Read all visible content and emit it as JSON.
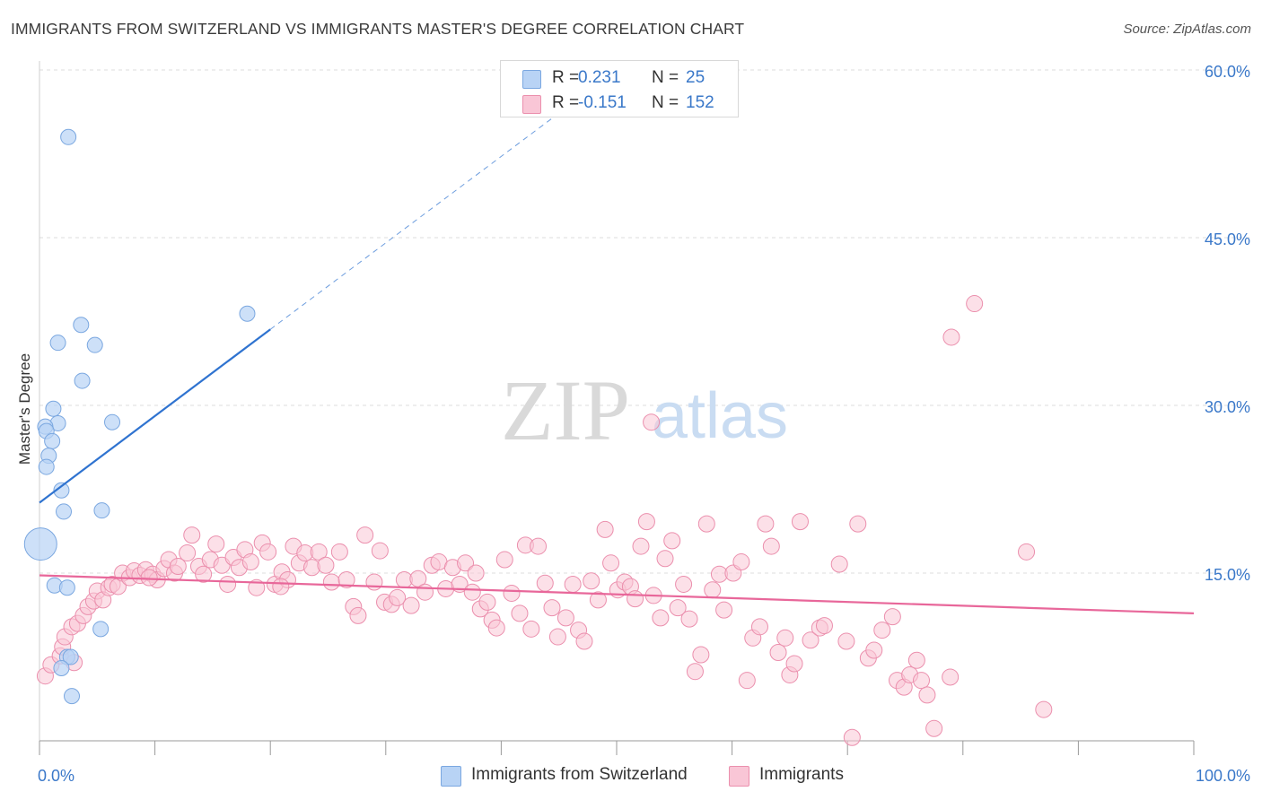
{
  "title": "IMMIGRANTS FROM SWITZERLAND VS IMMIGRANTS MASTER'S DEGREE CORRELATION CHART",
  "source": "Source: ZipAtlas.com",
  "watermark": {
    "zip": "ZIP",
    "atlas": "atlas"
  },
  "colors": {
    "blue_fill": "#b8d3f5",
    "blue_stroke": "#7aa7e0",
    "blue_line": "#2f73d0",
    "pink_fill": "#f9c6d6",
    "pink_stroke": "#eb8fad",
    "pink_line": "#e8679a",
    "tick_label": "#3a78c9",
    "grid": "#dcdcdc"
  },
  "legend_top": [
    {
      "r_label": "R =",
      "r_value": "0.231",
      "n_label": "N =",
      "n_value": "25",
      "color": "#b8d3f5"
    },
    {
      "r_label": "R =",
      "r_value": "-0.151",
      "n_label": "N =",
      "n_value": "152",
      "color": "#f9c6d6"
    }
  ],
  "legend_bottom": [
    {
      "label": "Immigrants from Switzerland",
      "color": "#b8d3f5"
    },
    {
      "label": "Immigrants",
      "color": "#f9c6d6"
    }
  ],
  "chart_data": {
    "type": "scatter",
    "title": "IMMIGRANTS FROM SWITZERLAND VS IMMIGRANTS MASTER'S DEGREE CORRELATION CHART",
    "xlabel": "",
    "ylabel": "Master's Degree",
    "xlim": [
      0,
      100
    ],
    "ylim": [
      0,
      60
    ],
    "x_tick_labels": [
      "0.0%",
      "100.0%"
    ],
    "y_ticks": [
      15,
      30,
      45,
      60
    ],
    "y_tick_labels": [
      "15.0%",
      "30.0%",
      "45.0%",
      "60.0%"
    ],
    "grid": true,
    "legend_position": "top-center",
    "series": [
      {
        "name": "Immigrants from Switzerland",
        "r": 0.231,
        "n": 25,
        "trend": {
          "x": [
            0,
            20
          ],
          "y": [
            21.3,
            36.8
          ],
          "dashed_to": [
            50,
            60
          ]
        },
        "points": [
          [
            2.5,
            54.0
          ],
          [
            18.0,
            38.2
          ],
          [
            3.6,
            37.2
          ],
          [
            1.6,
            35.6
          ],
          [
            4.8,
            35.4
          ],
          [
            3.7,
            32.2
          ],
          [
            6.3,
            28.5
          ],
          [
            1.2,
            29.7
          ],
          [
            1.6,
            28.4
          ],
          [
            0.5,
            28.1
          ],
          [
            0.6,
            27.7
          ],
          [
            1.1,
            26.8
          ],
          [
            0.8,
            25.5
          ],
          [
            0.6,
            24.5
          ],
          [
            1.9,
            22.4
          ],
          [
            2.1,
            20.5
          ],
          [
            5.4,
            20.6
          ],
          [
            0.1,
            17.6
          ],
          [
            1.3,
            13.9
          ],
          [
            2.4,
            13.7
          ],
          [
            5.3,
            10.0
          ],
          [
            2.4,
            7.5
          ],
          [
            2.7,
            7.5
          ],
          [
            1.9,
            6.5
          ],
          [
            2.8,
            4.0
          ]
        ]
      },
      {
        "name": "Immigrants",
        "r": -0.151,
        "n": 152,
        "trend": {
          "x": [
            0,
            100
          ],
          "y": [
            14.8,
            11.4
          ]
        },
        "points": [
          [
            0.5,
            5.8
          ],
          [
            1.0,
            6.8
          ],
          [
            1.8,
            7.6
          ],
          [
            2.0,
            8.4
          ],
          [
            2.2,
            9.3
          ],
          [
            2.8,
            10.2
          ],
          [
            3.3,
            10.5
          ],
          [
            3.8,
            11.2
          ],
          [
            4.2,
            12.0
          ],
          [
            4.7,
            12.5
          ],
          [
            5.0,
            13.4
          ],
          [
            5.5,
            12.6
          ],
          [
            6.0,
            13.7
          ],
          [
            6.3,
            14.0
          ],
          [
            6.8,
            13.8
          ],
          [
            7.2,
            15.0
          ],
          [
            7.8,
            14.6
          ],
          [
            8.2,
            15.2
          ],
          [
            8.7,
            14.8
          ],
          [
            9.2,
            15.3
          ],
          [
            9.8,
            14.9
          ],
          [
            10.2,
            14.4
          ],
          [
            10.8,
            15.4
          ],
          [
            11.2,
            16.2
          ],
          [
            11.7,
            15.0
          ],
          [
            12.0,
            15.6
          ],
          [
            12.8,
            16.8
          ],
          [
            13.2,
            18.4
          ],
          [
            13.8,
            15.6
          ],
          [
            14.2,
            14.9
          ],
          [
            14.8,
            16.2
          ],
          [
            15.3,
            17.6
          ],
          [
            15.8,
            15.7
          ],
          [
            16.3,
            14.0
          ],
          [
            16.8,
            16.4
          ],
          [
            17.3,
            15.5
          ],
          [
            17.8,
            17.1
          ],
          [
            18.3,
            16.0
          ],
          [
            18.8,
            13.7
          ],
          [
            19.3,
            17.7
          ],
          [
            19.8,
            16.9
          ],
          [
            20.4,
            14.0
          ],
          [
            21.0,
            15.1
          ],
          [
            21.5,
            14.4
          ],
          [
            22.0,
            17.4
          ],
          [
            22.5,
            15.9
          ],
          [
            23.0,
            16.8
          ],
          [
            23.6,
            15.5
          ],
          [
            24.2,
            16.9
          ],
          [
            24.8,
            15.7
          ],
          [
            25.3,
            14.2
          ],
          [
            26.0,
            16.9
          ],
          [
            26.6,
            14.4
          ],
          [
            27.2,
            12.0
          ],
          [
            27.6,
            11.2
          ],
          [
            28.2,
            18.4
          ],
          [
            29.0,
            14.2
          ],
          [
            29.5,
            17.0
          ],
          [
            29.9,
            12.4
          ],
          [
            30.5,
            12.2
          ],
          [
            31.0,
            12.8
          ],
          [
            31.6,
            14.4
          ],
          [
            32.2,
            12.1
          ],
          [
            32.8,
            14.5
          ],
          [
            33.4,
            13.3
          ],
          [
            34.0,
            15.7
          ],
          [
            34.6,
            16.0
          ],
          [
            35.2,
            13.6
          ],
          [
            35.8,
            15.5
          ],
          [
            36.4,
            14.0
          ],
          [
            36.9,
            15.9
          ],
          [
            37.5,
            13.3
          ],
          [
            37.8,
            15.0
          ],
          [
            38.2,
            11.8
          ],
          [
            38.8,
            12.4
          ],
          [
            39.2,
            10.8
          ],
          [
            39.6,
            10.1
          ],
          [
            40.3,
            16.2
          ],
          [
            40.9,
            13.2
          ],
          [
            41.6,
            11.4
          ],
          [
            42.1,
            17.5
          ],
          [
            42.6,
            10.0
          ],
          [
            43.2,
            17.4
          ],
          [
            43.8,
            14.1
          ],
          [
            44.4,
            11.9
          ],
          [
            44.9,
            9.3
          ],
          [
            45.6,
            11.0
          ],
          [
            46.2,
            14.0
          ],
          [
            46.7,
            9.9
          ],
          [
            47.2,
            8.9
          ],
          [
            47.8,
            14.3
          ],
          [
            48.4,
            12.6
          ],
          [
            49.0,
            18.9
          ],
          [
            49.5,
            15.9
          ],
          [
            50.1,
            13.5
          ],
          [
            50.7,
            14.2
          ],
          [
            51.2,
            13.8
          ],
          [
            51.6,
            12.7
          ],
          [
            52.1,
            17.4
          ],
          [
            52.6,
            19.6
          ],
          [
            53.2,
            13.0
          ],
          [
            53.8,
            11.0
          ],
          [
            54.2,
            16.3
          ],
          [
            54.8,
            17.9
          ],
          [
            55.3,
            11.9
          ],
          [
            55.8,
            14.0
          ],
          [
            56.3,
            10.9
          ],
          [
            56.8,
            6.2
          ],
          [
            57.3,
            7.7
          ],
          [
            57.8,
            19.4
          ],
          [
            58.3,
            13.5
          ],
          [
            58.9,
            14.9
          ],
          [
            59.3,
            11.7
          ],
          [
            60.1,
            15.0
          ],
          [
            60.8,
            16.0
          ],
          [
            61.3,
            5.4
          ],
          [
            61.8,
            9.2
          ],
          [
            62.4,
            10.2
          ],
          [
            62.9,
            19.4
          ],
          [
            63.4,
            17.4
          ],
          [
            64.0,
            7.9
          ],
          [
            64.6,
            9.2
          ],
          [
            65.0,
            5.9
          ],
          [
            65.4,
            6.9
          ],
          [
            65.9,
            19.6
          ],
          [
            66.8,
            9.0
          ],
          [
            67.6,
            10.1
          ],
          [
            68.0,
            10.3
          ],
          [
            69.3,
            15.8
          ],
          [
            69.9,
            8.9
          ],
          [
            70.4,
            0.3
          ],
          [
            70.9,
            19.4
          ],
          [
            71.8,
            7.4
          ],
          [
            72.3,
            8.1
          ],
          [
            73.0,
            9.9
          ],
          [
            73.9,
            11.1
          ],
          [
            74.3,
            5.4
          ],
          [
            74.9,
            4.8
          ],
          [
            75.4,
            5.9
          ],
          [
            76.0,
            7.2
          ],
          [
            76.4,
            5.4
          ],
          [
            76.9,
            4.1
          ],
          [
            77.5,
            1.1
          ],
          [
            78.9,
            5.7
          ],
          [
            79.0,
            36.1
          ],
          [
            81.0,
            39.1
          ],
          [
            85.5,
            16.9
          ],
          [
            87.0,
            2.8
          ],
          [
            53.0,
            28.5
          ],
          [
            20.9,
            13.8
          ],
          [
            3.0,
            7.0
          ],
          [
            9.5,
            14.6
          ]
        ]
      }
    ]
  }
}
